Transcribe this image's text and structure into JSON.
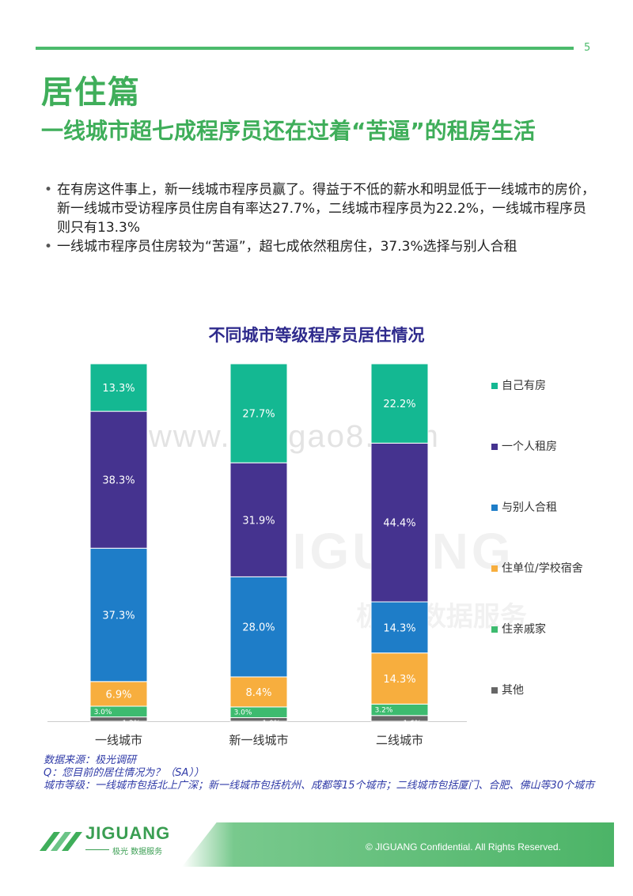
{
  "page_number": "5",
  "section_title": "居住篇",
  "headline": "一线城市超七成程序员还在过着“苦逼”的租房生活",
  "bullets": [
    "在有房这件事上，新一线城市程序员赢了。得益于不低的薪水和明显低于一线城市的房价，新一线城市受访程序员住房自有率达27.7%，二线城市程序员为22.2%，一线城市程序员则只有13.3%",
    "一线城市程序员住房较为“苦逼”，超七成依然租房住，37.3%选择与别人合租"
  ],
  "chart_data": {
    "type": "bar",
    "stacked": true,
    "title": "不同城市等级程序员居住情况",
    "categories": [
      "一线城市",
      "新一线城市",
      "二线城市"
    ],
    "series": [
      {
        "name": "其他",
        "values": [
          1.2,
          1.0,
          1.6
        ],
        "labels": [
          "1.2%",
          "1.0%",
          "1.6%"
        ],
        "color": "#666666"
      },
      {
        "name": "住亲戚家",
        "values": [
          3.0,
          3.0,
          3.2
        ],
        "labels": [
          "3.0%",
          "3.0%",
          "3.2%"
        ],
        "color": "#3dbb6f"
      },
      {
        "name": "住单位/学校宿舍",
        "values": [
          6.9,
          8.4,
          14.3
        ],
        "labels": [
          "6.9%",
          "8.4%",
          "14.3%"
        ],
        "color": "#f7ae3e"
      },
      {
        "name": "与别人合租",
        "values": [
          37.3,
          28.0,
          14.3
        ],
        "labels": [
          "37.3%",
          "28.0%",
          "14.3%"
        ],
        "color": "#1e7dc8"
      },
      {
        "name": "一个人租房",
        "values": [
          38.3,
          31.9,
          44.4
        ],
        "labels": [
          "38.3%",
          "31.9%",
          "44.4%"
        ],
        "color": "#45338f"
      },
      {
        "name": "自己有房",
        "values": [
          13.3,
          27.7,
          22.2
        ],
        "labels": [
          "13.3%",
          "27.7%",
          "22.2%"
        ],
        "color": "#14b892"
      }
    ],
    "legend_order": [
      "自己有房",
      "一个人租房",
      "与别人合租",
      "住单位/学校宿舍",
      "住亲戚家",
      "其他"
    ],
    "legend_position": "right",
    "title_color": "#2e2a8c",
    "ylim": [
      0,
      100
    ],
    "grid": false
  },
  "notes": [
    "数据来源：极光调研",
    "Q：您目前的居住情况为？（SA））",
    "城市等级：一线城市包括北上广深；新一线城市包括杭州、成都等15个城市；二线城市包括厦门、合肥、佛山等30个城市"
  ],
  "footer": {
    "copyright": "© JIGUANG Confidential. All Rights Reserved.",
    "logo_text": "JIGUANG",
    "logo_sub": "极光 数据服务"
  },
  "watermark": {
    "url": "www.baogao8.com",
    "logo": "JIGUANG",
    "sub": "极光 数据服务"
  },
  "colors": {
    "accent_green": "#4cbb6c",
    "note_blue": "#2f3aa7"
  }
}
